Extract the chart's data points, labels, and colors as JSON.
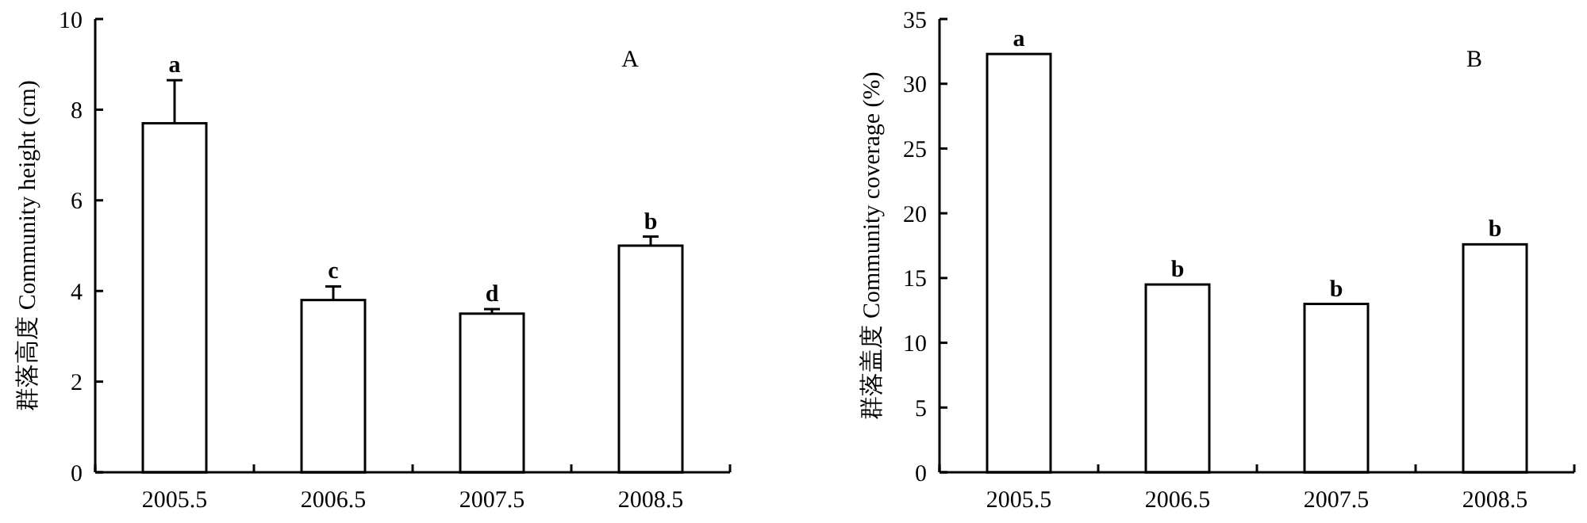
{
  "chart_data": [
    {
      "type": "bar",
      "ylabel": "群落高度 Community height (cm)",
      "categories": [
        "2005.5",
        "2006.5",
        "2007.5",
        "2008.5"
      ],
      "values": [
        7.7,
        3.8,
        3.5,
        5.0
      ],
      "errors": [
        0.95,
        0.3,
        0.1,
        0.2
      ],
      "color": "#ffffff",
      "ylim": [
        0,
        10
      ],
      "yticks": [
        0,
        2,
        4,
        6,
        8,
        10
      ],
      "grid": false,
      "annotations": [
        "A",
        {
          "text": "a",
          "x": "2005.5",
          "y": 8.65
        },
        {
          "text": "c",
          "x": "2006.5",
          "y": 4.1
        },
        {
          "text": "d",
          "x": "2007.5",
          "y": 3.6
        },
        {
          "text": "b",
          "x": "2008.5",
          "y": 5.2
        }
      ]
    },
    {
      "type": "bar",
      "ylabel": "群落盖度 Community coverage (%)",
      "categories": [
        "2005.5",
        "2006.5",
        "2007.5",
        "2008.5"
      ],
      "values": [
        32.3,
        14.5,
        13.0,
        17.6
      ],
      "color": "#ffffff",
      "ylim": [
        0,
        35
      ],
      "yticks": [
        0,
        5,
        10,
        15,
        20,
        25,
        30,
        35
      ],
      "grid": false,
      "annotations": [
        "B",
        {
          "text": "a",
          "x": "2005.5",
          "y": 32.3
        },
        {
          "text": "b",
          "x": "2006.5",
          "y": 14.5
        },
        {
          "text": "b",
          "x": "2007.5",
          "y": 13.0
        },
        {
          "text": "b",
          "x": "2008.5",
          "y": 17.6
        }
      ]
    }
  ]
}
